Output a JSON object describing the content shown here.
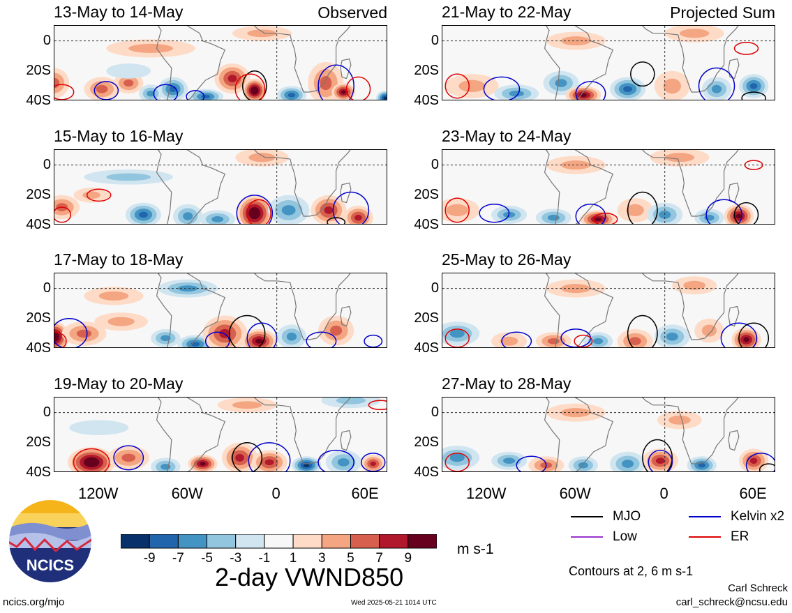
{
  "chart_data": {
    "type": "heatmap",
    "title": "2-day VWND850",
    "units": "m s-1",
    "y_ticks": [
      "0",
      "20S",
      "40S"
    ],
    "ylim": [
      -40,
      10
    ],
    "x_ticks": [
      "120W",
      "60W",
      "0",
      "60E"
    ],
    "xlim": [
      -150,
      75
    ],
    "colorbar": {
      "labels": [
        "-9",
        "-7",
        "-5",
        "-3",
        "-1",
        "1",
        "3",
        "5",
        "7",
        "9"
      ],
      "colors": [
        "#08306b",
        "#2166ac",
        "#4393c3",
        "#92c5de",
        "#d1e5f0",
        "#f7f7f7",
        "#fddbc7",
        "#f4a582",
        "#d6604d",
        "#b2182b",
        "#67001f"
      ]
    },
    "legend": [
      {
        "name": "MJO",
        "color": "#000000"
      },
      {
        "name": "Kelvin x2",
        "color": "#0000cc"
      },
      {
        "name": "Low",
        "color": "#9933cc"
      },
      {
        "name": "ER",
        "color": "#dd0000"
      }
    ],
    "contour_note": "Contours at 2, 6 m s-1",
    "panels": [
      {
        "title": "13-May to 14-May",
        "tag": "Observed"
      },
      {
        "title": "15-May to 16-May",
        "tag": ""
      },
      {
        "title": "17-May to 18-May",
        "tag": ""
      },
      {
        "title": "19-May to 20-May",
        "tag": ""
      },
      {
        "title": "21-May to 22-May",
        "tag": "Projected Sum"
      },
      {
        "title": "23-May to 24-May",
        "tag": ""
      },
      {
        "title": "25-May to 26-May",
        "tag": ""
      },
      {
        "title": "27-May to 28-May",
        "tag": ""
      }
    ]
  },
  "logo": {
    "text": "NCICS"
  },
  "footer": {
    "url": "ncics.org/mjo",
    "timestamp": "Wed 2025-05-21 1014 UTC",
    "author": "Carl Schreck",
    "email": "carl_schreck@ncsu.edu"
  }
}
